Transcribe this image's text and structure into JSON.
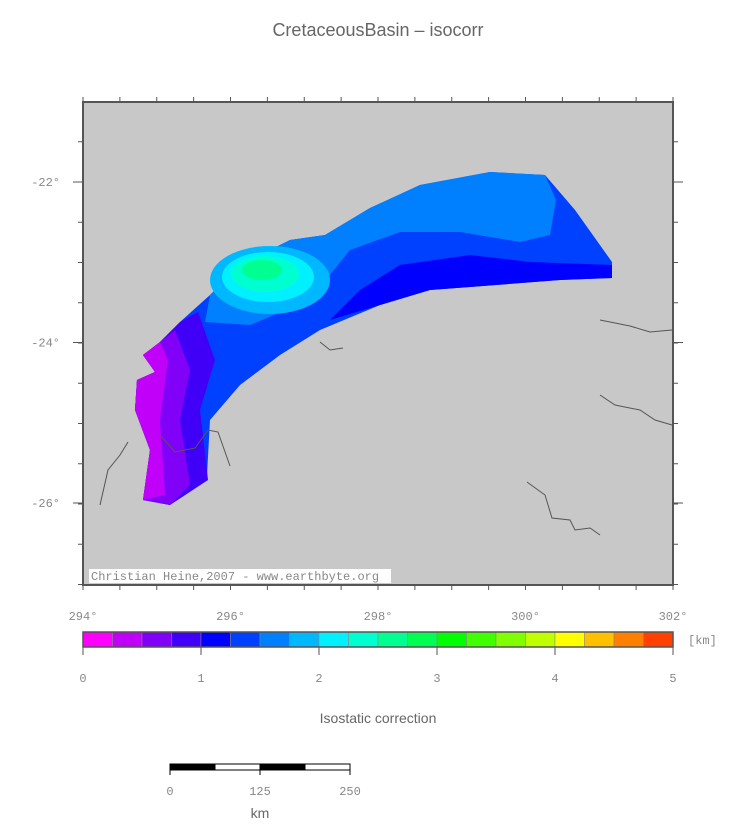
{
  "title": "CretaceousBasin – isocorr",
  "map": {
    "xticks": [
      "294°",
      "296°",
      "298°",
      "300°",
      "302°"
    ],
    "yticks": [
      "-22°",
      "-24°",
      "-26°"
    ],
    "credit": "Christian Heine,2007 - www.earthbyte.org"
  },
  "colorbar": {
    "unit": "[km]",
    "ticks": [
      "0",
      "1",
      "2",
      "3",
      "4",
      "5"
    ],
    "colors": [
      "#ff00ff",
      "#c000f8",
      "#8000f8",
      "#4000f8",
      "#0000ff",
      "#0040ff",
      "#0080ff",
      "#00b8ff",
      "#00f0ff",
      "#00ffd0",
      "#00ff90",
      "#00ff50",
      "#00ff00",
      "#40ff00",
      "#80ff00",
      "#c0ff00",
      "#ffff00",
      "#ffc000",
      "#ff8000",
      "#ff4000"
    ],
    "label": "Isostatic correction"
  },
  "scalebar": {
    "ticks": [
      "0",
      "125",
      "250"
    ],
    "unit": "km"
  }
}
